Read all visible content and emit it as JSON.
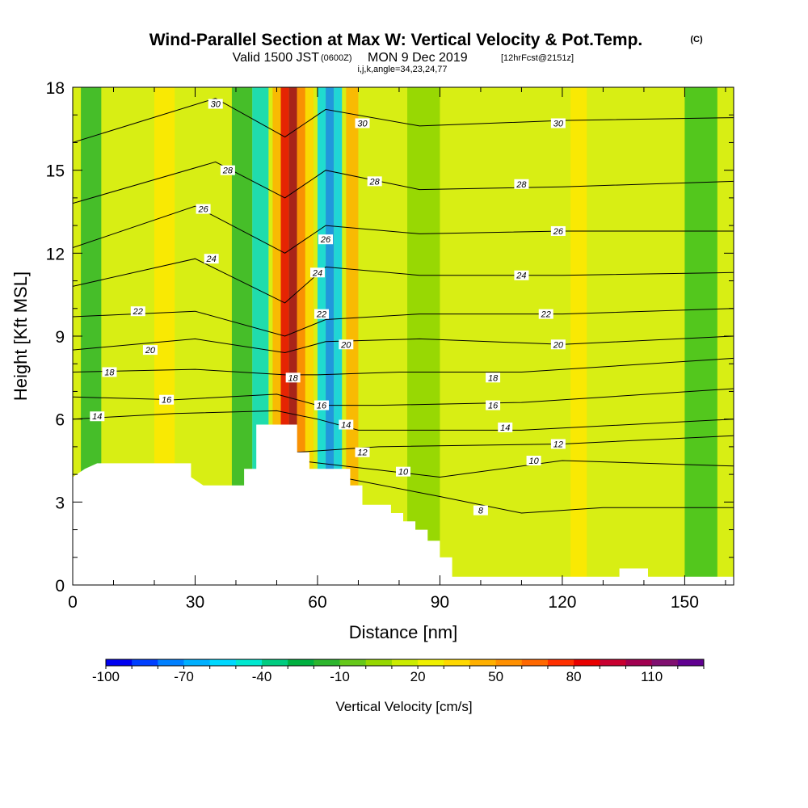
{
  "titles": {
    "main": "Wind-Parallel Section at Max W: Vertical Velocity & Pot.Temp.",
    "copyright": "(C)",
    "valid_prefix": "Valid 1500 JST",
    "valid_utc": "(0600Z)",
    "valid_date": "MON 9 Dec 2019",
    "forecast": "[12hrFcst@2151z]",
    "indices": "i,j,k,angle=34,23,24,77"
  },
  "chart_data": {
    "type": "heatmap",
    "xlabel": "Distance [nm]",
    "ylabel": "Height [Kft MSL]",
    "xlim": [
      0,
      162
    ],
    "ylim": [
      0,
      18
    ],
    "x_ticks": [
      0,
      30,
      60,
      90,
      120,
      150
    ],
    "y_ticks": [
      0,
      3,
      6,
      9,
      12,
      15,
      18
    ],
    "terrain": [
      {
        "x": 0,
        "h": 3.9
      },
      {
        "x": 3,
        "h": 4.2
      },
      {
        "x": 6,
        "h": 4.4
      },
      {
        "x": 29,
        "h": 4.4
      },
      {
        "x": 29,
        "h": 3.9
      },
      {
        "x": 32,
        "h": 3.6
      },
      {
        "x": 42,
        "h": 3.6
      },
      {
        "x": 42,
        "h": 4.2
      },
      {
        "x": 45,
        "h": 4.2
      },
      {
        "x": 45,
        "h": 5.8
      },
      {
        "x": 55,
        "h": 5.8
      },
      {
        "x": 55,
        "h": 4.8
      },
      {
        "x": 58,
        "h": 4.8
      },
      {
        "x": 58,
        "h": 4.2
      },
      {
        "x": 68,
        "h": 4.2
      },
      {
        "x": 68,
        "h": 3.6
      },
      {
        "x": 71,
        "h": 3.6
      },
      {
        "x": 71,
        "h": 2.9
      },
      {
        "x": 78,
        "h": 2.9
      },
      {
        "x": 78,
        "h": 2.6
      },
      {
        "x": 81,
        "h": 2.6
      },
      {
        "x": 81,
        "h": 2.3
      },
      {
        "x": 84,
        "h": 2.3
      },
      {
        "x": 84,
        "h": 2.0
      },
      {
        "x": 87,
        "h": 2.0
      },
      {
        "x": 87,
        "h": 1.6
      },
      {
        "x": 90,
        "h": 1.6
      },
      {
        "x": 90,
        "h": 1.0
      },
      {
        "x": 93,
        "h": 1.0
      },
      {
        "x": 93,
        "h": 0.3
      },
      {
        "x": 134,
        "h": 0.3
      },
      {
        "x": 134,
        "h": 0.6
      },
      {
        "x": 141,
        "h": 0.6
      },
      {
        "x": 141,
        "h": 0.3
      },
      {
        "x": 162,
        "h": 0.3
      }
    ],
    "isotherms": [
      {
        "level": "8",
        "points": [
          [
            55,
            4.2
          ],
          [
            90,
            3.2
          ],
          [
            110,
            2.6
          ],
          [
            130,
            2.8
          ],
          [
            162,
            2.8
          ]
        ]
      },
      {
        "level": "10",
        "points": [
          [
            55,
            4.5
          ],
          [
            90,
            3.9
          ],
          [
            120,
            4.5
          ],
          [
            162,
            4.3
          ]
        ]
      },
      {
        "level": "12",
        "points": [
          [
            55,
            4.8
          ],
          [
            75,
            5.0
          ],
          [
            120,
            5.1
          ],
          [
            162,
            5.4
          ]
        ]
      },
      {
        "level": "14",
        "points": [
          [
            0,
            6.0
          ],
          [
            25,
            6.2
          ],
          [
            50,
            6.3
          ],
          [
            60,
            6.0
          ],
          [
            70,
            5.6
          ],
          [
            110,
            5.6
          ],
          [
            162,
            6.0
          ]
        ]
      },
      {
        "level": "16",
        "points": [
          [
            0,
            6.8
          ],
          [
            25,
            6.7
          ],
          [
            50,
            6.9
          ],
          [
            60,
            6.5
          ],
          [
            75,
            6.5
          ],
          [
            110,
            6.6
          ],
          [
            162,
            7.1
          ]
        ]
      },
      {
        "level": "18",
        "points": [
          [
            0,
            7.7
          ],
          [
            30,
            7.8
          ],
          [
            52,
            7.6
          ],
          [
            60,
            7.6
          ],
          [
            80,
            7.7
          ],
          [
            110,
            7.7
          ],
          [
            162,
            8.2
          ]
        ]
      },
      {
        "level": "20",
        "points": [
          [
            0,
            8.5
          ],
          [
            30,
            8.9
          ],
          [
            52,
            8.4
          ],
          [
            62,
            8.8
          ],
          [
            85,
            8.9
          ],
          [
            120,
            8.7
          ],
          [
            162,
            9.0
          ]
        ]
      },
      {
        "level": "22",
        "points": [
          [
            0,
            9.7
          ],
          [
            30,
            9.9
          ],
          [
            52,
            9.0
          ],
          [
            62,
            9.6
          ],
          [
            85,
            9.8
          ],
          [
            120,
            9.8
          ],
          [
            162,
            10.0
          ]
        ]
      },
      {
        "level": "24",
        "points": [
          [
            0,
            10.8
          ],
          [
            30,
            11.8
          ],
          [
            52,
            10.2
          ],
          [
            62,
            11.5
          ],
          [
            85,
            11.2
          ],
          [
            120,
            11.2
          ],
          [
            162,
            11.3
          ]
        ]
      },
      {
        "level": "26",
        "points": [
          [
            0,
            12.2
          ],
          [
            30,
            13.7
          ],
          [
            52,
            12.0
          ],
          [
            62,
            13.0
          ],
          [
            85,
            12.7
          ],
          [
            120,
            12.8
          ],
          [
            162,
            12.8
          ]
        ]
      },
      {
        "level": "28",
        "points": [
          [
            0,
            13.8
          ],
          [
            35,
            15.3
          ],
          [
            52,
            14.0
          ],
          [
            62,
            15.0
          ],
          [
            85,
            14.3
          ],
          [
            120,
            14.4
          ],
          [
            162,
            14.6
          ]
        ]
      },
      {
        "level": "30",
        "points": [
          [
            0,
            16.0
          ],
          [
            35,
            17.6
          ],
          [
            52,
            16.2
          ],
          [
            62,
            17.2
          ],
          [
            85,
            16.6
          ],
          [
            120,
            16.8
          ],
          [
            162,
            16.9
          ]
        ]
      }
    ],
    "contour_labels": [
      {
        "text": "30",
        "x": 35,
        "y": 17.4
      },
      {
        "text": "30",
        "x": 71,
        "y": 16.7
      },
      {
        "text": "30",
        "x": 119,
        "y": 16.7
      },
      {
        "text": "28",
        "x": 38,
        "y": 15.0
      },
      {
        "text": "28",
        "x": 74,
        "y": 14.6
      },
      {
        "text": "28",
        "x": 110,
        "y": 14.5
      },
      {
        "text": "26",
        "x": 32,
        "y": 13.6
      },
      {
        "text": "26",
        "x": 62,
        "y": 12.5
      },
      {
        "text": "26",
        "x": 119,
        "y": 12.8
      },
      {
        "text": "24",
        "x": 34,
        "y": 11.8
      },
      {
        "text": "24",
        "x": 60,
        "y": 11.3
      },
      {
        "text": "24",
        "x": 110,
        "y": 11.2
      },
      {
        "text": "22",
        "x": 16,
        "y": 9.9
      },
      {
        "text": "22",
        "x": 61,
        "y": 9.8
      },
      {
        "text": "22",
        "x": 116,
        "y": 9.8
      },
      {
        "text": "20",
        "x": 19,
        "y": 8.5
      },
      {
        "text": "20",
        "x": 67,
        "y": 8.7
      },
      {
        "text": "20",
        "x": 119,
        "y": 8.7
      },
      {
        "text": "18",
        "x": 9,
        "y": 7.7
      },
      {
        "text": "18",
        "x": 54,
        "y": 7.5
      },
      {
        "text": "18",
        "x": 103,
        "y": 7.5
      },
      {
        "text": "16",
        "x": 23,
        "y": 6.7
      },
      {
        "text": "16",
        "x": 61,
        "y": 6.5
      },
      {
        "text": "16",
        "x": 103,
        "y": 6.5
      },
      {
        "text": "14",
        "x": 6,
        "y": 6.1
      },
      {
        "text": "14",
        "x": 67,
        "y": 5.8
      },
      {
        "text": "14",
        "x": 106,
        "y": 5.7
      },
      {
        "text": "12",
        "x": 71,
        "y": 4.8
      },
      {
        "text": "12",
        "x": 119,
        "y": 5.1
      },
      {
        "text": "10",
        "x": 81,
        "y": 4.1
      },
      {
        "text": "10",
        "x": 113,
        "y": 4.5
      },
      {
        "text": "8",
        "x": 100,
        "y": 2.7
      }
    ],
    "shading_bands": [
      {
        "x0": 2,
        "x1": 7,
        "color": "#2db52d"
      },
      {
        "x0": 20,
        "x1": 25,
        "color": "#ffe800"
      },
      {
        "x0": 39,
        "x1": 44,
        "color": "#2db52d"
      },
      {
        "x0": 44,
        "x1": 48,
        "color": "#00d8c8"
      },
      {
        "x0": 49,
        "x1": 51,
        "color": "#ffb000"
      },
      {
        "x0": 51,
        "x1": 53,
        "color": "#e80000"
      },
      {
        "x0": 53,
        "x1": 55,
        "color": "#a0001a"
      },
      {
        "x0": 55,
        "x1": 57,
        "color": "#ff8000"
      },
      {
        "x0": 57,
        "x1": 59,
        "color": "#ffd500"
      },
      {
        "x0": 60,
        "x1": 62,
        "color": "#00d8f0"
      },
      {
        "x0": 62,
        "x1": 64,
        "color": "#0088ff"
      },
      {
        "x0": 64,
        "x1": 66,
        "color": "#00d0f8"
      },
      {
        "x0": 67,
        "x1": 70,
        "color": "#ffb000"
      },
      {
        "x0": 82,
        "x1": 90,
        "color": "#8dd400"
      },
      {
        "x0": 122,
        "x1": 126,
        "color": "#ffe800"
      },
      {
        "x0": 150,
        "x1": 158,
        "color": "#3cbf1f"
      }
    ],
    "colorbar": {
      "title": "Vertical Velocity [cm/s]",
      "tick_labels": [
        "-100",
        "-70",
        "-40",
        "-10",
        "20",
        "50",
        "80",
        "110"
      ],
      "colors": [
        "#0000f0",
        "#0040ff",
        "#0080ff",
        "#00b0ff",
        "#00d8ff",
        "#00e8d0",
        "#00cc80",
        "#00b040",
        "#2db52d",
        "#66c81a",
        "#96d700",
        "#cbec00",
        "#f0f000",
        "#ffd800",
        "#ffb000",
        "#ff9000",
        "#ff6800",
        "#ff3000",
        "#e80000",
        "#c80030",
        "#a00050",
        "#801070",
        "#600090"
      ]
    },
    "colors": {
      "background_field": "#d8ee14",
      "terrain": "#ffffff",
      "contour_line": "#000000"
    }
  }
}
